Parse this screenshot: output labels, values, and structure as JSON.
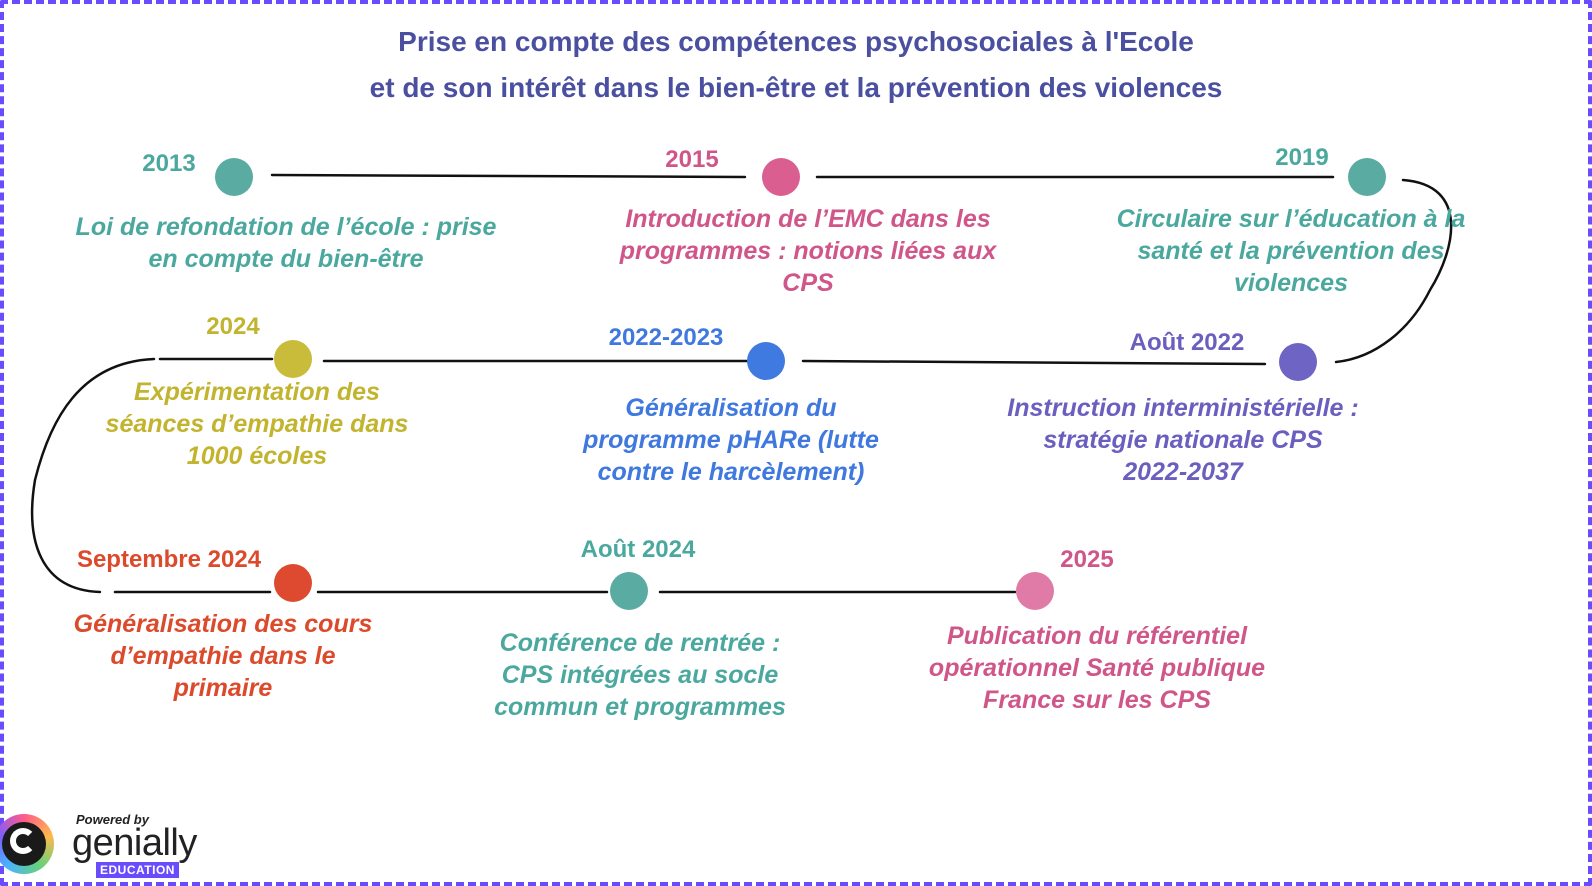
{
  "title": {
    "line1": "Prise en compte des compétences psychosociales à l'Ecole",
    "line2": "et de son intérêt dans le bien-être et la prévention des violences"
  },
  "events": [
    {
      "year": "2013",
      "text": [
        "Loi de refondation de l’école : prise",
        "en compte du bien-être"
      ],
      "color": "#5aaca2"
    },
    {
      "year": "2015",
      "text": [
        "Introduction de l’EMC dans les",
        "programmes : notions liées aux",
        "CPS"
      ],
      "color": "#da5f90"
    },
    {
      "year": "2019",
      "text": [
        "Circulaire sur l’éducation à la",
        "santé et la prévention des",
        "violences"
      ],
      "color": "#5aaca2"
    },
    {
      "year": "Août 2022",
      "text": [
        "Instruction interministérielle :",
        "stratégie nationale CPS",
        "2022-2037"
      ],
      "color": "#6e64c3"
    },
    {
      "year": "2022-2023",
      "text": [
        "Généralisation du",
        "programme pHARe (lutte",
        "contre le harcèlement)"
      ],
      "color": "#3f7ae0"
    },
    {
      "year": "2024",
      "text": [
        "Expérimentation des",
        "séances d’empathie dans",
        "1000 écoles"
      ],
      "color": "#c8bc3a"
    },
    {
      "year": "Septembre 2024",
      "text": [
        "Généralisation des cours",
        "d’empathie dans le",
        "primaire"
      ],
      "color": "#dd4a2f"
    },
    {
      "year": "Août 2024",
      "text": [
        "Conférence de rentrée :",
        "CPS intégrées au socle",
        "commun et programmes"
      ],
      "color": "#5aaca2"
    },
    {
      "year": "2025",
      "text": [
        "Publication du référentiel",
        "opérationnel Santé publique",
        "France sur les CPS"
      ],
      "color": "#e07aa6"
    }
  ],
  "branding": {
    "powered_by": "Powered by",
    "name": "genially",
    "tag": "EDUCATION",
    "logo_icon": "genially-logo-icon"
  }
}
